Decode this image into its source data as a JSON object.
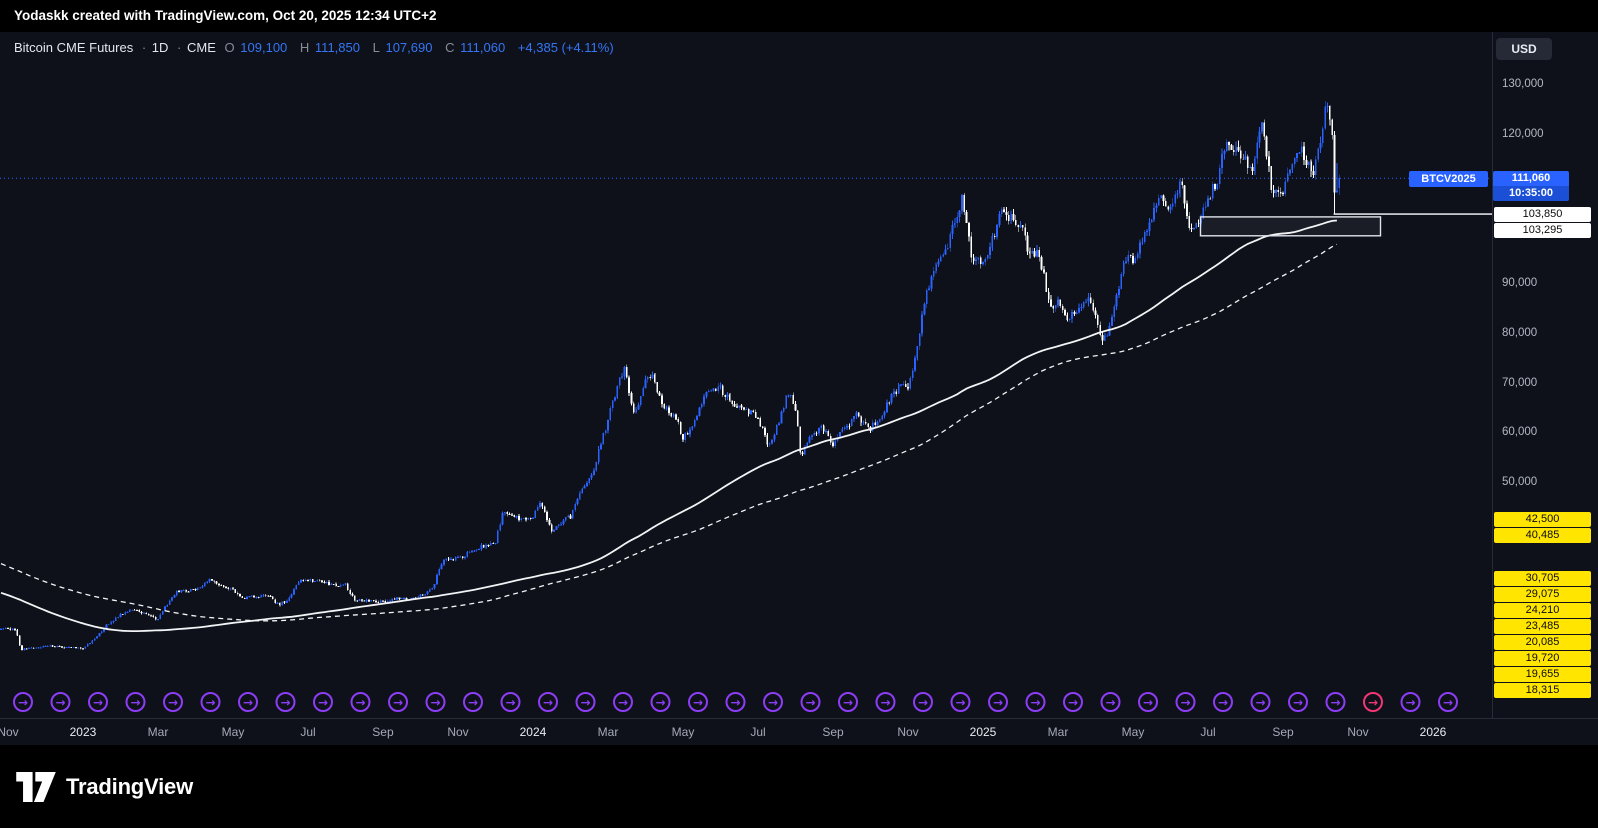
{
  "attribution": "Yodaskk created with TradingView.com, Oct 20, 2025 12:34 UTC+2",
  "header": {
    "symbol_title": "Bitcoin CME Futures",
    "sep": "·",
    "timeframe": "1D",
    "exchange": "CME",
    "ohlc": {
      "o_key": "O",
      "o": "109,100",
      "h_key": "H",
      "h": "111,850",
      "l_key": "L",
      "l": "107,690",
      "c_key": "C",
      "c": "111,060",
      "change": "+4,385 (+4.11%)"
    }
  },
  "price_axis": {
    "currency": "USD",
    "plain_labels": [
      {
        "text": "130,000",
        "price": 130000
      },
      {
        "text": "120,000",
        "price": 120000
      },
      {
        "text": "90,000",
        "price": 90000
      },
      {
        "text": "80,000",
        "price": 80000
      },
      {
        "text": "70,000",
        "price": 70000
      },
      {
        "text": "60,000",
        "price": 60000
      },
      {
        "text": "50,000",
        "price": 50000
      }
    ],
    "current": {
      "ticker": "BTCV2025",
      "price_text": "111,060",
      "countdown": "10:35:00",
      "price": 111060
    },
    "white_badges": [
      {
        "text": "103,850",
        "price": 103850
      },
      {
        "text": "103,295",
        "price": 103295
      }
    ],
    "yellow_badges": [
      {
        "text": "42,500",
        "price": 42500
      },
      {
        "text": "40,485",
        "price": 40485
      },
      {
        "text": "30,705",
        "price": 30705
      },
      {
        "text": "29,075",
        "price": 29075
      },
      {
        "text": "24,210",
        "price": 24210
      },
      {
        "text": "23,485",
        "price": 23485
      },
      {
        "text": "20,085",
        "price": 20085
      },
      {
        "text": "19,720",
        "price": 19720
      },
      {
        "text": "19,655",
        "price": 19655
      },
      {
        "text": "18,315",
        "price": 18315
      }
    ]
  },
  "time_axis": {
    "labels": [
      {
        "text": "Nov",
        "t": 0,
        "year": false
      },
      {
        "text": "2023",
        "t": 2,
        "year": true
      },
      {
        "text": "Mar",
        "t": 4,
        "year": false
      },
      {
        "text": "May",
        "t": 6,
        "year": false
      },
      {
        "text": "Jul",
        "t": 8,
        "year": false
      },
      {
        "text": "Sep",
        "t": 10,
        "year": false
      },
      {
        "text": "Nov",
        "t": 12,
        "year": false
      },
      {
        "text": "2024",
        "t": 14,
        "year": true
      },
      {
        "text": "Mar",
        "t": 16,
        "year": false
      },
      {
        "text": "May",
        "t": 18,
        "year": false
      },
      {
        "text": "Jul",
        "t": 20,
        "year": false
      },
      {
        "text": "Sep",
        "t": 22,
        "year": false
      },
      {
        "text": "Nov",
        "t": 24,
        "year": false
      },
      {
        "text": "2025",
        "t": 26,
        "year": true
      },
      {
        "text": "Mar",
        "t": 28,
        "year": false
      },
      {
        "text": "May",
        "t": 30,
        "year": false
      },
      {
        "text": "Jul",
        "t": 32,
        "year": false
      },
      {
        "text": "Sep",
        "t": 34,
        "year": false
      },
      {
        "text": "Nov",
        "t": 36,
        "year": false
      },
      {
        "text": "2026",
        "t": 38,
        "year": true
      }
    ]
  },
  "footer": {
    "brand": "TradingView"
  },
  "colors": {
    "up": "#2962ff",
    "down": "#ffffff",
    "accent": "#2962ff",
    "badge_yellow": "#ffe500",
    "badge_white": "#ffffff",
    "event_purple": "#8d3df5",
    "event_pink": "#f23674",
    "axis_text": "#b2b8c2",
    "background": "#0e111a"
  },
  "chart_data": {
    "type": "candlestick",
    "title": "Bitcoin CME Futures",
    "symbol": "BTCV2025",
    "interval": "1D",
    "exchange": "CME",
    "currency": "USD",
    "up_color": "#2962ff",
    "down_color": "#ffffff",
    "x_range_months_from_nov2022": [
      -0.2133,
      39.5733
    ],
    "y_range_usd": [
      2566,
      140452
    ],
    "bars_per_month": 16,
    "t_start": -13,
    "t_end": 35.55,
    "last_bar": {
      "open": 109100,
      "high": 111850,
      "low": 107690,
      "close": 111060
    },
    "crash_spike_low": 103880,
    "current_price": 111060,
    "prehistory_anchors": [
      [
        -13,
        61500
      ],
      [
        -12,
        57000
      ],
      [
        -11,
        46200
      ],
      [
        -10,
        38500
      ],
      [
        -9,
        43200
      ],
      [
        -8,
        45500
      ],
      [
        -7,
        37700
      ],
      [
        -6,
        31800
      ],
      [
        -5,
        19900
      ],
      [
        -4,
        23300
      ],
      [
        -3,
        20000
      ],
      [
        -2,
        19400
      ],
      [
        -1,
        20500
      ],
      [
        -0.35,
        20600
      ]
    ],
    "price_anchors": [
      [
        0,
        20500
      ],
      [
        0.2,
        20300
      ],
      [
        0.35,
        16300
      ],
      [
        0.6,
        16500
      ],
      [
        1,
        17100
      ],
      [
        1.5,
        16700
      ],
      [
        2,
        16600
      ],
      [
        2.3,
        18500
      ],
      [
        2.6,
        21000
      ],
      [
        3,
        23200
      ],
      [
        3.4,
        24500
      ],
      [
        3.7,
        23200
      ],
      [
        4,
        22400
      ],
      [
        4.2,
        25000
      ],
      [
        4.5,
        28200
      ],
      [
        5,
        28300
      ],
      [
        5.4,
        30300
      ],
      [
        5.8,
        29000
      ],
      [
        6,
        28200
      ],
      [
        6.3,
        26500
      ],
      [
        6.6,
        27200
      ],
      [
        7,
        26900
      ],
      [
        7.2,
        25300
      ],
      [
        7.5,
        26500
      ],
      [
        7.8,
        30600
      ],
      [
        8,
        30300
      ],
      [
        8.4,
        29900
      ],
      [
        8.8,
        29200
      ],
      [
        9,
        29300
      ],
      [
        9.25,
        26100
      ],
      [
        9.6,
        26000
      ],
      [
        10,
        25900
      ],
      [
        10.4,
        26600
      ],
      [
        10.7,
        26300
      ],
      [
        11,
        27100
      ],
      [
        11.3,
        28300
      ],
      [
        11.6,
        34200
      ],
      [
        12,
        34600
      ],
      [
        12.4,
        36200
      ],
      [
        12.8,
        37500
      ],
      [
        13,
        38000
      ],
      [
        13.2,
        43900
      ],
      [
        13.5,
        42800
      ],
      [
        13.8,
        42300
      ],
      [
        14,
        42800
      ],
      [
        14.2,
        46400
      ],
      [
        14.5,
        39800
      ],
      [
        14.8,
        42200
      ],
      [
        15,
        43100
      ],
      [
        15.3,
        48500
      ],
      [
        15.6,
        52000
      ],
      [
        15.8,
        57500
      ],
      [
        16,
        62500
      ],
      [
        16.2,
        68000
      ],
      [
        16.45,
        73200
      ],
      [
        16.7,
        63000
      ],
      [
        17,
        70500
      ],
      [
        17.2,
        71200
      ],
      [
        17.5,
        64500
      ],
      [
        17.8,
        63500
      ],
      [
        18,
        58500
      ],
      [
        18.3,
        62000
      ],
      [
        18.6,
        68000
      ],
      [
        19,
        68800
      ],
      [
        19.3,
        66000
      ],
      [
        19.6,
        64800
      ],
      [
        20,
        62800
      ],
      [
        20.3,
        57200
      ],
      [
        20.6,
        63000
      ],
      [
        20.8,
        68200
      ],
      [
        21,
        64800
      ],
      [
        21.15,
        54500
      ],
      [
        21.4,
        59500
      ],
      [
        21.7,
        61000
      ],
      [
        22,
        57800
      ],
      [
        22.3,
        60500
      ],
      [
        22.6,
        63500
      ],
      [
        23,
        60800
      ],
      [
        23.3,
        63300
      ],
      [
        23.6,
        67800
      ],
      [
        23.85,
        69500
      ],
      [
        24,
        69000
      ],
      [
        24.2,
        75500
      ],
      [
        24.5,
        88000
      ],
      [
        24.7,
        93000
      ],
      [
        25,
        96000
      ],
      [
        25.2,
        101500
      ],
      [
        25.45,
        107000
      ],
      [
        25.7,
        95500
      ],
      [
        26,
        94200
      ],
      [
        26.2,
        97000
      ],
      [
        26.5,
        105000
      ],
      [
        26.7,
        103000
      ],
      [
        27,
        102000
      ],
      [
        27.2,
        96500
      ],
      [
        27.5,
        96000
      ],
      [
        27.8,
        84500
      ],
      [
        28,
        86000
      ],
      [
        28.2,
        83000
      ],
      [
        28.5,
        84000
      ],
      [
        28.8,
        87500
      ],
      [
        29,
        82800
      ],
      [
        29.2,
        77500
      ],
      [
        29.5,
        85000
      ],
      [
        29.8,
        94800
      ],
      [
        30,
        95000
      ],
      [
        30.2,
        97500
      ],
      [
        30.5,
        103500
      ],
      [
        30.7,
        108500
      ],
      [
        31,
        105000
      ],
      [
        31.3,
        110500
      ],
      [
        31.5,
        100500
      ],
      [
        31.8,
        102000
      ],
      [
        32,
        107500
      ],
      [
        32.2,
        109500
      ],
      [
        32.5,
        118500
      ],
      [
        32.8,
        117000
      ],
      [
        33,
        114500
      ],
      [
        33.2,
        113500
      ],
      [
        33.45,
        123500
      ],
      [
        33.7,
        107500
      ],
      [
        34,
        108500
      ],
      [
        34.2,
        112500
      ],
      [
        34.5,
        116500
      ],
      [
        34.8,
        112000
      ],
      [
        35,
        117500
      ],
      [
        35.15,
        126000
      ],
      [
        35.3,
        121500
      ],
      [
        35.45,
        107500
      ],
      [
        35.55,
        111060
      ]
    ],
    "moving_averages": [
      {
        "name": "sma-fast",
        "style": "solid",
        "window_bars": 140
      },
      {
        "name": "sma-slow",
        "style": "dashed",
        "window_bars": 200
      }
    ],
    "drawings": {
      "current_price_line": 111060,
      "horizontal_line": {
        "price": 103850,
        "from_month": 35.35
      },
      "rectangle": {
        "price_top": 103295,
        "price_bottom": 99500,
        "from_month": 31.8,
        "to_month": 36.6
      }
    },
    "events_row": {
      "count": 39,
      "t_offset": 0.4,
      "color": "#8d3df5",
      "highlight_index": 36,
      "highlight_color": "#f23674",
      "glyph": "→"
    }
  }
}
